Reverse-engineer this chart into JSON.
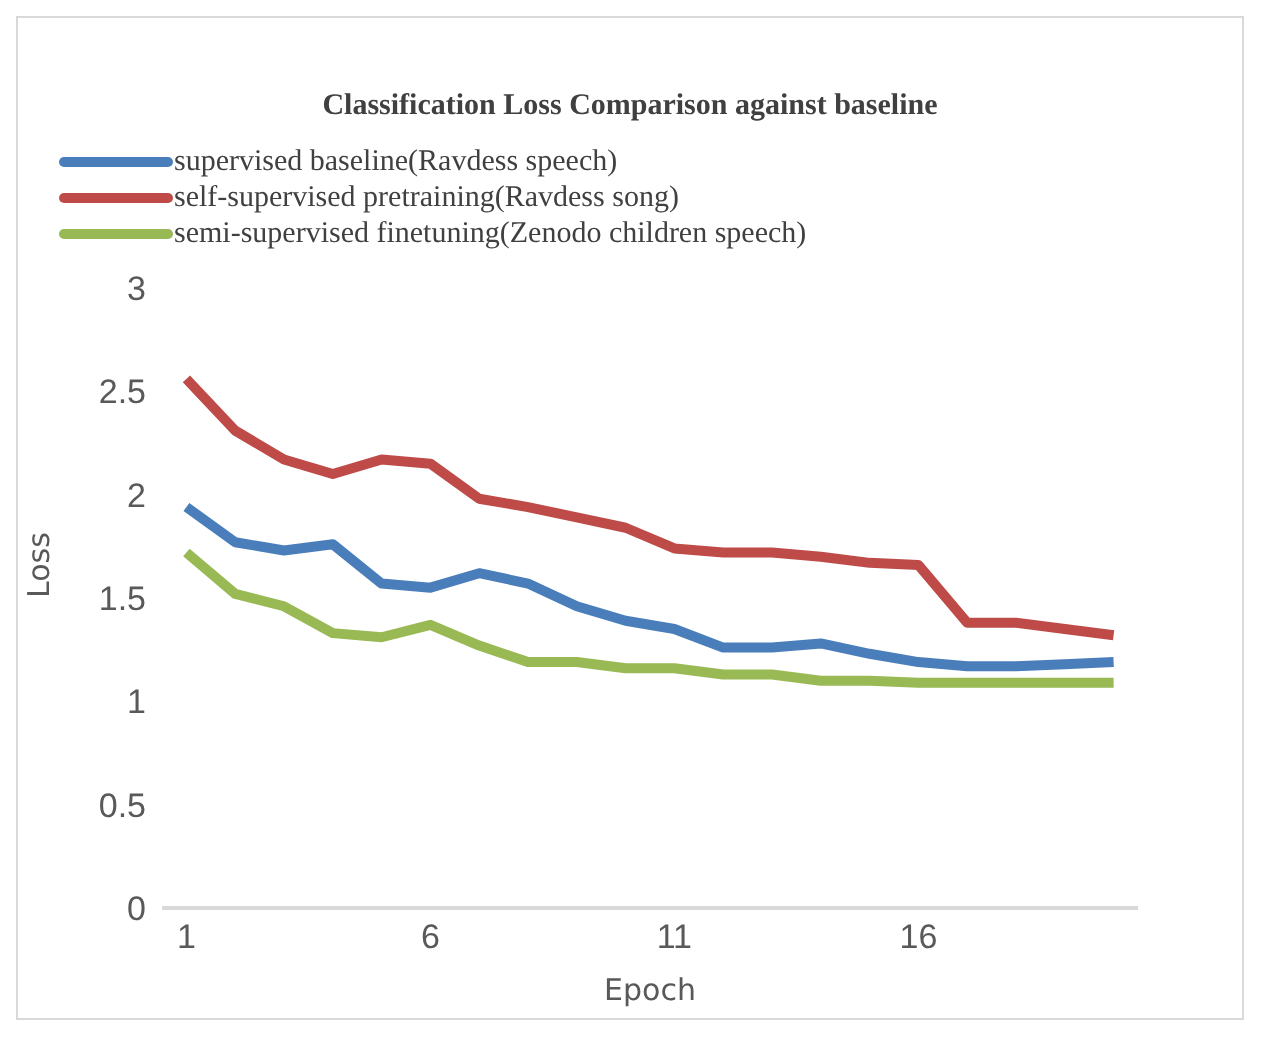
{
  "chart_data": {
    "type": "line",
    "title": "Classification Loss Comparison against baseline",
    "xlabel": "Epoch",
    "ylabel": "Loss",
    "x": [
      1,
      2,
      3,
      4,
      5,
      6,
      7,
      8,
      9,
      10,
      11,
      12,
      13,
      14,
      15,
      16,
      17,
      18,
      19,
      20
    ],
    "series": [
      {
        "name": "supervised baseline(Ravdess speech)",
        "color": "#4a7ebb",
        "values": [
          1.94,
          1.77,
          1.73,
          1.76,
          1.57,
          1.55,
          1.62,
          1.57,
          1.46,
          1.39,
          1.35,
          1.26,
          1.26,
          1.28,
          1.23,
          1.19,
          1.17,
          1.17,
          1.18,
          1.19
        ]
      },
      {
        "name": "self-supervised pretraining(Ravdess song)",
        "color": "#be4b48",
        "values": [
          2.56,
          2.31,
          2.17,
          2.1,
          2.17,
          2.15,
          1.98,
          1.94,
          1.89,
          1.84,
          1.74,
          1.72,
          1.72,
          1.7,
          1.67,
          1.66,
          1.38,
          1.38,
          1.35,
          1.32
        ]
      },
      {
        "name": "semi-supervised finetuning(Zenodo children speech)",
        "color": "#98b954",
        "values": [
          1.72,
          1.52,
          1.46,
          1.33,
          1.31,
          1.37,
          1.27,
          1.19,
          1.19,
          1.16,
          1.16,
          1.13,
          1.13,
          1.1,
          1.1,
          1.09,
          1.09,
          1.09,
          1.09,
          1.09
        ]
      }
    ],
    "xlim": [
      0.5,
      20.5
    ],
    "xticks": [
      1,
      6,
      11,
      16
    ],
    "ylim": [
      0,
      3
    ],
    "yticks": [
      0,
      0.5,
      1,
      1.5,
      2,
      2.5,
      3
    ],
    "grid": false,
    "legend": "top left",
    "marker": "none",
    "line_style": "solid"
  }
}
